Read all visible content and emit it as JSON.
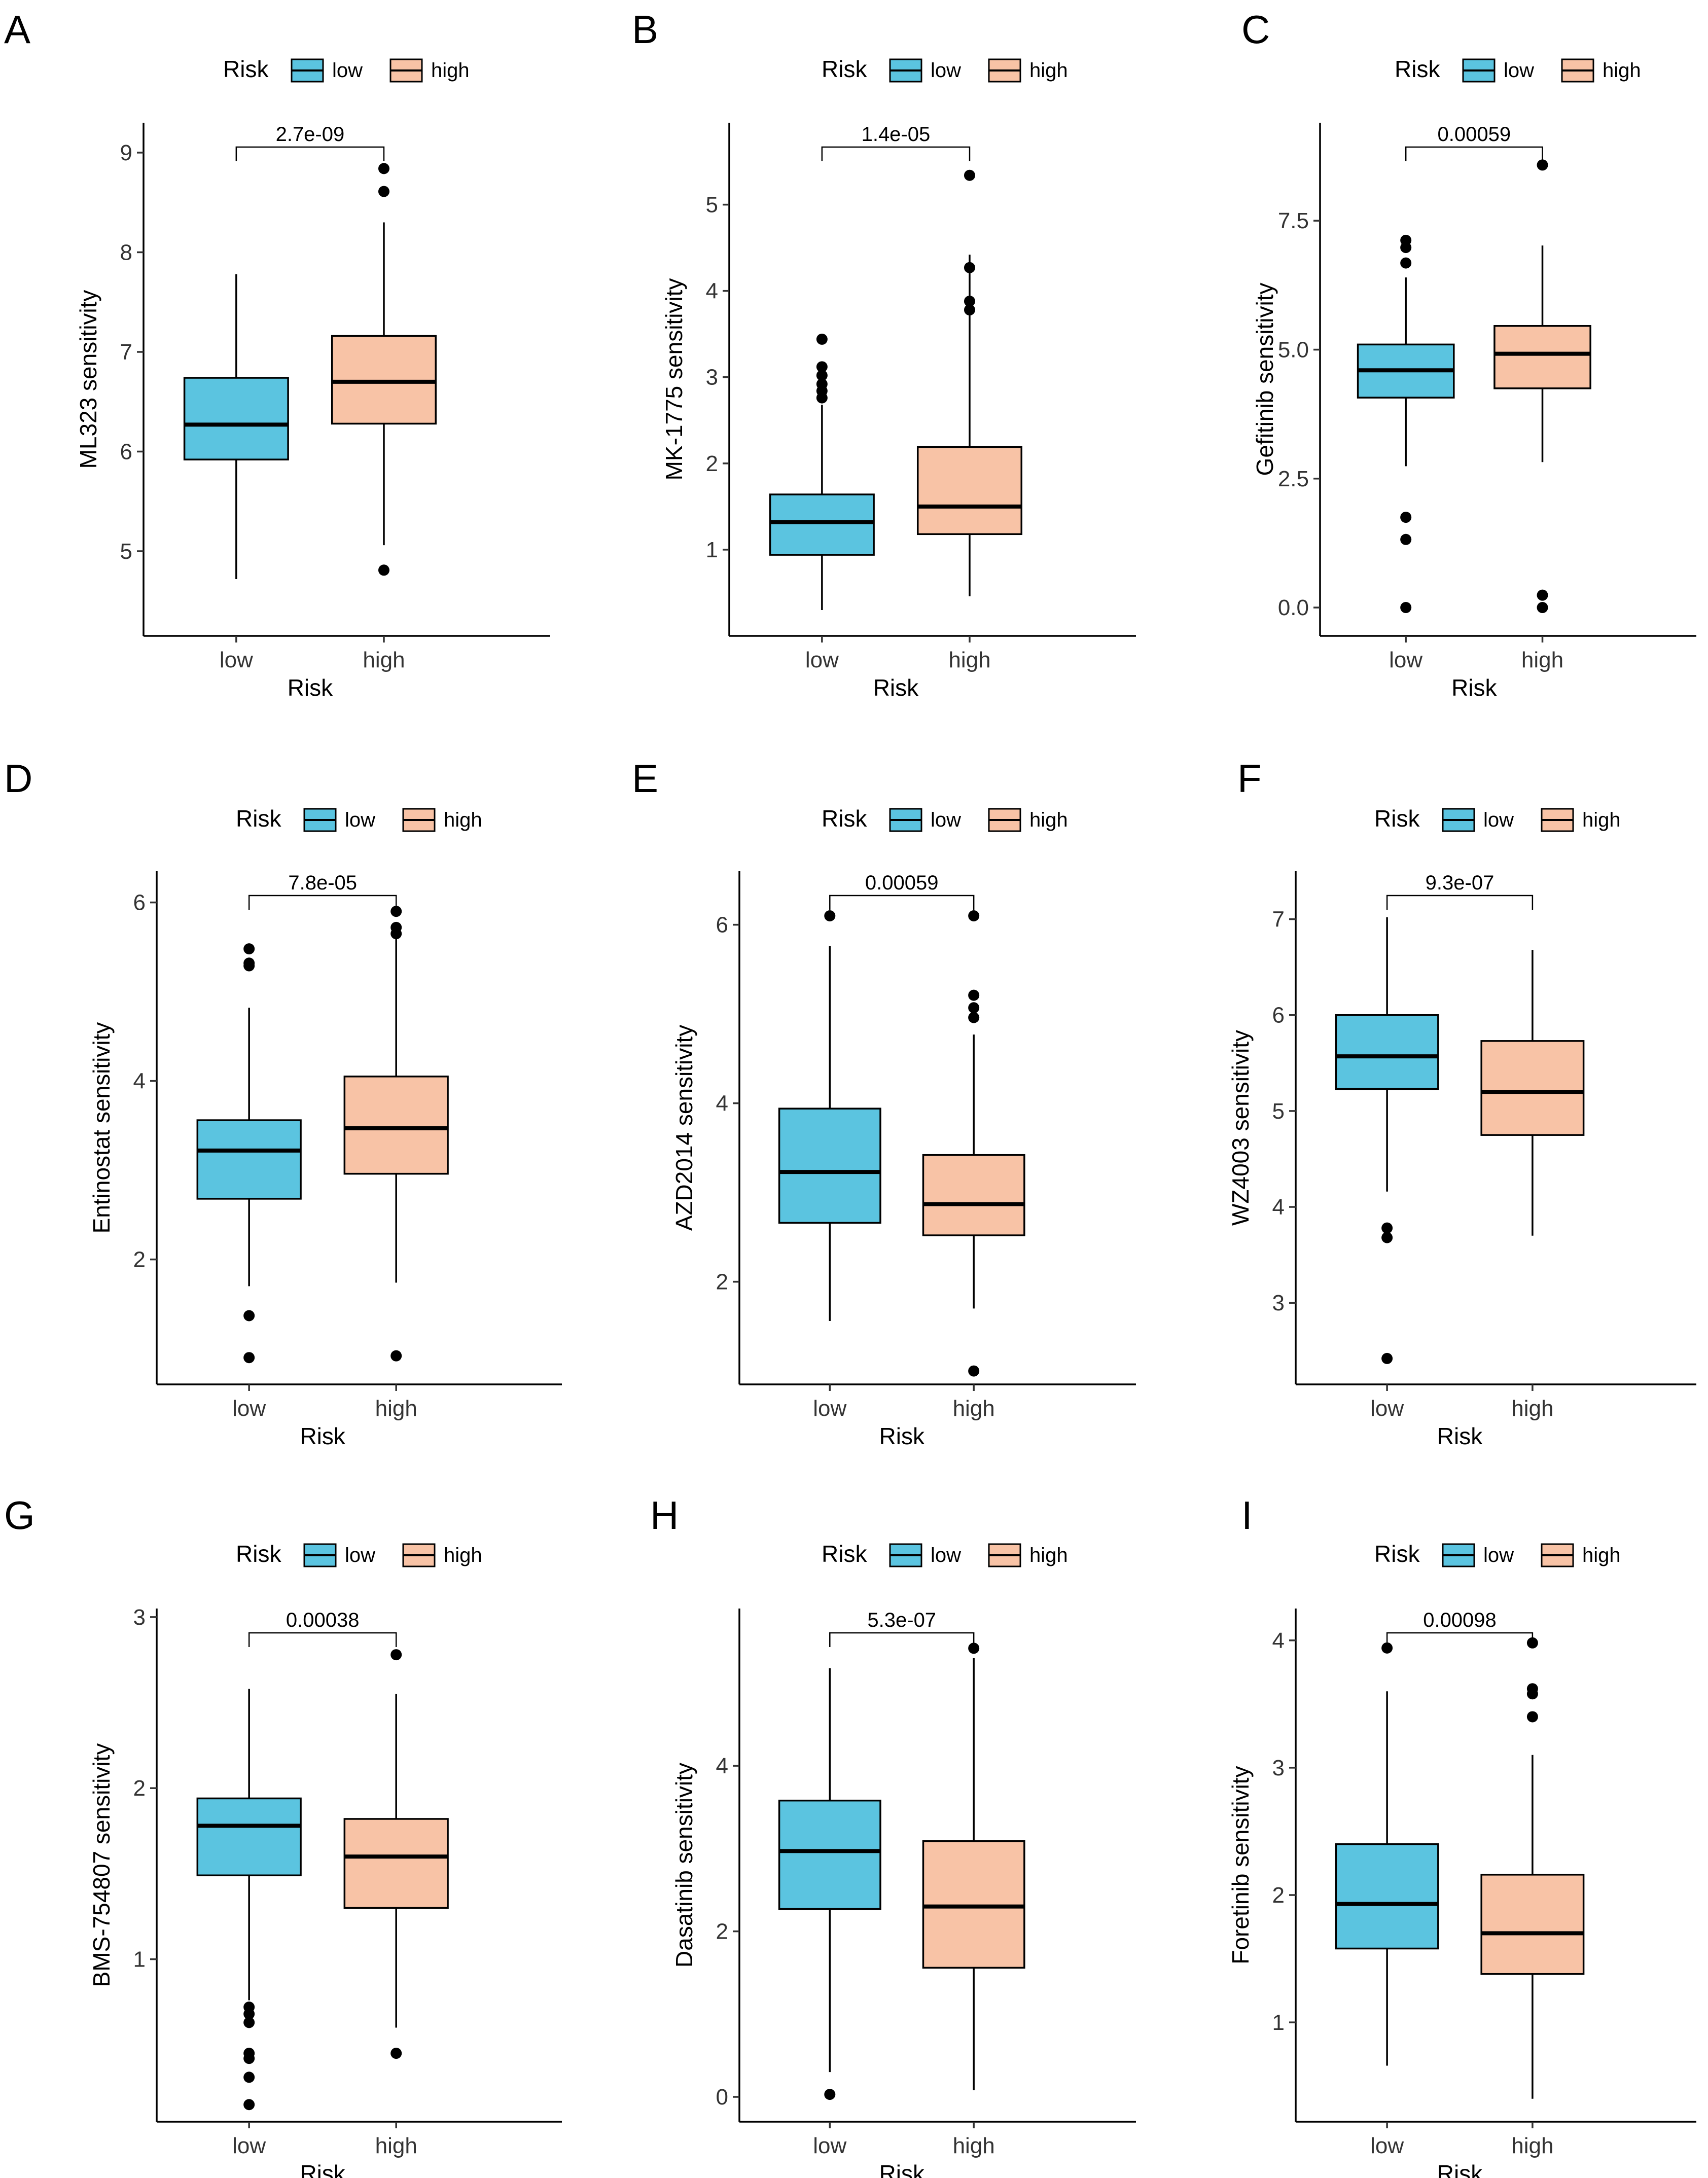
{
  "figure": {
    "colors": {
      "low": "#5BC4E0",
      "high": "#F8C3A6"
    },
    "legend": {
      "title": "Risk",
      "low": "low",
      "high": "high"
    }
  },
  "chart_data": [
    {
      "panel": "A",
      "type": "boxplot",
      "ylabel": "ML323 sensitivity",
      "xlabel": "Risk",
      "categories": [
        "low",
        "high"
      ],
      "ylim": [
        4.15,
        9.3
      ],
      "yticks": [
        5,
        6,
        7,
        8,
        9
      ],
      "pvalue": "2.7e-09",
      "boxes": [
        {
          "group": "low",
          "q1": 5.92,
          "median": 6.27,
          "q3": 6.74,
          "whisker_low": 4.72,
          "whisker_high": 7.78,
          "outliers": []
        },
        {
          "group": "high",
          "q1": 6.28,
          "median": 6.7,
          "q3": 7.16,
          "whisker_low": 5.06,
          "whisker_high": 8.3,
          "outliers": [
            4.81,
            8.61,
            8.84
          ]
        }
      ]
    },
    {
      "panel": "B",
      "type": "boxplot",
      "ylabel": "MK-1775 sensitivity",
      "xlabel": "Risk",
      "categories": [
        "low",
        "high"
      ],
      "ylim": [
        0.0,
        5.95
      ],
      "yticks": [
        1,
        2,
        3,
        4,
        5
      ],
      "pvalue": "1.4e-05",
      "boxes": [
        {
          "group": "low",
          "q1": 0.94,
          "median": 1.32,
          "q3": 1.64,
          "whisker_low": 0.3,
          "whisker_high": 2.68,
          "outliers": [
            2.76,
            2.84,
            2.92,
            3.02,
            3.12,
            3.44
          ]
        },
        {
          "group": "high",
          "q1": 1.18,
          "median": 1.5,
          "q3": 2.19,
          "whisker_low": 0.46,
          "whisker_high": 4.42,
          "outliers": [
            3.78,
            3.88,
            4.27,
            5.34
          ]
        }
      ]
    },
    {
      "panel": "C",
      "type": "boxplot",
      "ylabel": "Gefitinib sensitivity",
      "xlabel": "Risk",
      "categories": [
        "low",
        "high"
      ],
      "ylim": [
        -0.55,
        9.4
      ],
      "yticks": [
        0.0,
        2.5,
        5.0,
        7.5
      ],
      "tick_labels": [
        "0.0",
        "2.5",
        "5.0",
        "7.5"
      ],
      "pvalue": "0.00059",
      "boxes": [
        {
          "group": "low",
          "q1": 4.07,
          "median": 4.6,
          "q3": 5.1,
          "whisker_low": 2.74,
          "whisker_high": 6.4,
          "outliers": [
            0.0,
            1.32,
            1.75,
            6.68,
            6.98,
            7.12
          ]
        },
        {
          "group": "high",
          "q1": 4.25,
          "median": 4.92,
          "q3": 5.46,
          "whisker_low": 2.82,
          "whisker_high": 7.02,
          "outliers": [
            0.0,
            0.24,
            8.58
          ]
        }
      ]
    },
    {
      "panel": "D",
      "type": "boxplot",
      "ylabel": "Entinostat sensitivity",
      "xlabel": "Risk",
      "categories": [
        "low",
        "high"
      ],
      "ylim": [
        0.6,
        6.35
      ],
      "yticks": [
        2,
        4,
        6
      ],
      "pvalue": "7.8e-05",
      "boxes": [
        {
          "group": "low",
          "q1": 2.68,
          "median": 3.22,
          "q3": 3.56,
          "whisker_low": 1.7,
          "whisker_high": 4.82,
          "outliers": [
            0.9,
            1.37,
            5.29,
            5.32,
            5.48
          ]
        },
        {
          "group": "high",
          "q1": 2.96,
          "median": 3.47,
          "q3": 4.05,
          "whisker_low": 1.74,
          "whisker_high": 5.62,
          "outliers": [
            0.92,
            5.65,
            5.72,
            5.9
          ]
        }
      ]
    },
    {
      "panel": "E",
      "type": "boxplot",
      "ylabel": "AZD2014 sensitivity",
      "xlabel": "Risk",
      "categories": [
        "low",
        "high"
      ],
      "ylim": [
        0.85,
        6.6
      ],
      "yticks": [
        2,
        4,
        6
      ],
      "pvalue": "0.00059",
      "boxes": [
        {
          "group": "low",
          "q1": 2.66,
          "median": 3.23,
          "q3": 3.94,
          "whisker_low": 1.56,
          "whisker_high": 5.76,
          "outliers": [
            6.1
          ]
        },
        {
          "group": "high",
          "q1": 2.52,
          "median": 2.87,
          "q3": 3.42,
          "whisker_low": 1.7,
          "whisker_high": 4.77,
          "outliers": [
            1.0,
            4.96,
            5.07,
            5.21,
            6.1
          ]
        }
      ]
    },
    {
      "panel": "F",
      "type": "boxplot",
      "ylabel": "WZ4003 sensitivity",
      "xlabel": "Risk",
      "categories": [
        "low",
        "high"
      ],
      "ylim": [
        2.15,
        7.5
      ],
      "yticks": [
        3,
        4,
        5,
        6,
        7
      ],
      "pvalue": "9.3e-07",
      "boxes": [
        {
          "group": "low",
          "q1": 5.23,
          "median": 5.57,
          "q3": 6.0,
          "whisker_low": 4.16,
          "whisker_high": 7.02,
          "outliers": [
            2.42,
            3.68,
            3.78
          ]
        },
        {
          "group": "high",
          "q1": 4.75,
          "median": 5.2,
          "q3": 5.73,
          "whisker_low": 3.7,
          "whisker_high": 6.68,
          "outliers": []
        }
      ]
    },
    {
      "panel": "G",
      "type": "boxplot",
      "ylabel": "BMS-754807 sensitivity",
      "xlabel": "Risk",
      "categories": [
        "low",
        "high"
      ],
      "ylim": [
        0.05,
        3.05
      ],
      "yticks": [
        1,
        2,
        3
      ],
      "pvalue": "0.00038",
      "boxes": [
        {
          "group": "low",
          "q1": 1.49,
          "median": 1.78,
          "q3": 1.94,
          "whisker_low": 0.76,
          "whisker_high": 2.58,
          "outliers": [
            0.15,
            0.31,
            0.42,
            0.45,
            0.63,
            0.68,
            0.72
          ]
        },
        {
          "group": "high",
          "q1": 1.3,
          "median": 1.6,
          "q3": 1.82,
          "whisker_low": 0.6,
          "whisker_high": 2.55,
          "outliers": [
            0.45,
            2.78
          ]
        }
      ]
    },
    {
      "panel": "H",
      "type": "boxplot",
      "ylabel": "Dasatinib sensitivity",
      "xlabel": "Risk",
      "categories": [
        "low",
        "high"
      ],
      "ylim": [
        -0.3,
        5.9
      ],
      "yticks": [
        0,
        2,
        4
      ],
      "pvalue": "5.3e-07",
      "boxes": [
        {
          "group": "low",
          "q1": 2.27,
          "median": 2.97,
          "q3": 3.58,
          "whisker_low": 0.3,
          "whisker_high": 5.18,
          "outliers": [
            0.03
          ]
        },
        {
          "group": "high",
          "q1": 1.56,
          "median": 2.3,
          "q3": 3.09,
          "whisker_low": 0.08,
          "whisker_high": 5.3,
          "outliers": [
            5.42
          ]
        }
      ]
    },
    {
      "panel": "I",
      "type": "boxplot",
      "ylabel": "Foretinib sensitivity",
      "xlabel": "Risk",
      "categories": [
        "low",
        "high"
      ],
      "ylim": [
        0.22,
        4.25
      ],
      "yticks": [
        1,
        2,
        3,
        4
      ],
      "pvalue": "0.00098",
      "boxes": [
        {
          "group": "low",
          "q1": 1.58,
          "median": 1.93,
          "q3": 2.4,
          "whisker_low": 0.66,
          "whisker_high": 3.6,
          "outliers": [
            3.94
          ]
        },
        {
          "group": "high",
          "q1": 1.38,
          "median": 1.7,
          "q3": 2.16,
          "whisker_low": 0.4,
          "whisker_high": 3.1,
          "outliers": [
            3.4,
            3.58,
            3.62,
            3.98
          ]
        }
      ]
    }
  ]
}
